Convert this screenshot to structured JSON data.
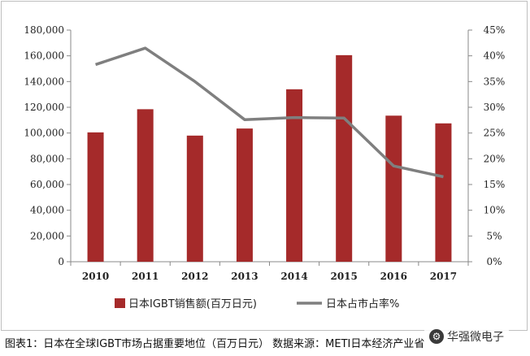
{
  "chart_data": {
    "type": "bar",
    "categories": [
      "2010",
      "2011",
      "2012",
      "2013",
      "2014",
      "2015",
      "2016",
      "2017"
    ],
    "series": [
      {
        "name": "日本IGBT销售额(百万日元)",
        "type": "bar",
        "axis": "left",
        "color": "#a52a2a",
        "values": [
          100500,
          118500,
          98000,
          103500,
          134000,
          160500,
          113500,
          107500
        ]
      },
      {
        "name": "日本占市占率%",
        "type": "line",
        "axis": "right",
        "color": "#7f7f7f",
        "values": [
          38.3,
          41.5,
          35.0,
          27.6,
          28.0,
          27.9,
          18.6,
          16.5
        ]
      }
    ],
    "y_left": {
      "ylim": [
        0,
        180000
      ],
      "ticks": [
        "0",
        "20,000",
        "40,000",
        "60,000",
        "80,000",
        "100,000",
        "120,000",
        "140,000",
        "160,000",
        "180,000"
      ]
    },
    "y_right": {
      "ylim": [
        0,
        45
      ],
      "ticks": [
        "0%",
        "5%",
        "10%",
        "15%",
        "20%",
        "25%",
        "30%",
        "35%",
        "40%",
        "45%"
      ]
    },
    "grid": false,
    "legend_position": "bottom"
  },
  "caption": "图表1：日本在全球IGBT市场占据重要地位（百万日元） 数据来源：METI日本经济产业省",
  "watermark": {
    "text": "华强微电子",
    "logo_icon": "chip-logo-icon"
  }
}
